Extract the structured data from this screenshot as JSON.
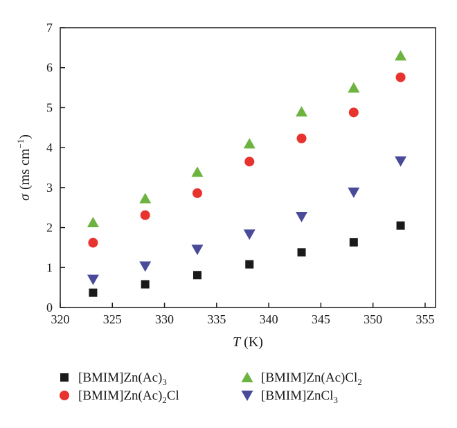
{
  "chart_data": {
    "type": "scatter",
    "title": "",
    "x": [
      323.15,
      328.15,
      333.15,
      338.15,
      343.15,
      348.15,
      352.65
    ],
    "xlim": [
      320,
      356
    ],
    "ylim": [
      0,
      7
    ],
    "xticks": [
      320,
      325,
      330,
      335,
      340,
      345,
      350,
      355
    ],
    "yticks": [
      0,
      1,
      2,
      3,
      4,
      5,
      6,
      7
    ],
    "xlabel": {
      "symbol": "T",
      "unit": " (K)"
    },
    "ylabel": {
      "symbol": "σ",
      "unit": "(ms cm",
      "exponent": "−1",
      "close": ")"
    },
    "grid": false,
    "legend_position": "below",
    "series": [
      {
        "name": "[BMIM]Zn(Ac)3",
        "label_parts": [
          {
            "t": "[BMIM]Zn(Ac)"
          },
          {
            "t": "3",
            "sub": true
          }
        ],
        "marker": "square",
        "color": "#1a1a1a",
        "values": [
          0.37,
          0.58,
          0.81,
          1.08,
          1.38,
          1.63,
          2.05
        ]
      },
      {
        "name": "[BMIM]Zn(Ac)2Cl",
        "label_parts": [
          {
            "t": "[BMIM]Zn(Ac)"
          },
          {
            "t": "2",
            "sub": true
          },
          {
            "t": "Cl"
          }
        ],
        "marker": "circle",
        "color": "#e8322d",
        "values": [
          1.62,
          2.31,
          2.86,
          3.65,
          4.23,
          4.88,
          5.76
        ]
      },
      {
        "name": "[BMIM]Zn(Ac)Cl2",
        "label_parts": [
          {
            "t": "[BMIM]Zn(Ac)Cl"
          },
          {
            "t": "2",
            "sub": true
          }
        ],
        "marker": "triangle-up",
        "color": "#6db33f",
        "values": [
          2.13,
          2.73,
          3.39,
          4.1,
          4.9,
          5.5,
          6.3
        ]
      },
      {
        "name": "[BMIM]ZnCl3",
        "label_parts": [
          {
            "t": "[BMIM]ZnCl"
          },
          {
            "t": "3",
            "sub": true
          }
        ],
        "marker": "triangle-down",
        "color": "#4a4a9a",
        "values": [
          0.7,
          1.03,
          1.45,
          1.83,
          2.27,
          2.88,
          3.66
        ]
      }
    ]
  }
}
